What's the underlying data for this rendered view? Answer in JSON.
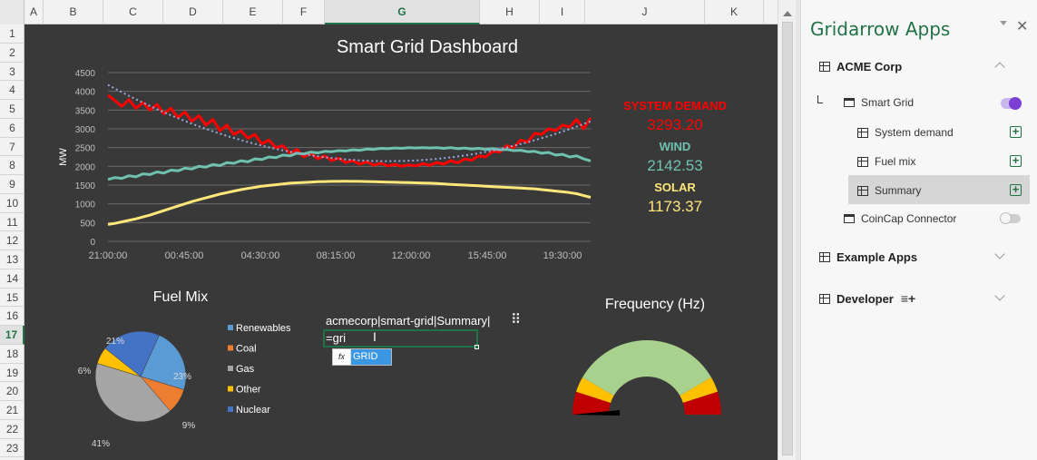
{
  "sheet": {
    "columns": [
      "A",
      "B",
      "C",
      "D",
      "E",
      "F",
      "G",
      "H",
      "I",
      "J",
      "K"
    ],
    "selected_column": "G",
    "rows": [
      "1",
      "2",
      "3",
      "4",
      "5",
      "6",
      "7",
      "8",
      "9",
      "10",
      "11",
      "12",
      "13",
      "14",
      "15",
      "16",
      "17",
      "18",
      "19",
      "20",
      "21",
      "22",
      "23"
    ],
    "selected_row": "17"
  },
  "dashboard": {
    "title": "Smart Grid Dashboard",
    "kpis": {
      "demand_label": "SYSTEM DEMAND",
      "demand_value": "3293.20",
      "wind_label": "WIND",
      "wind_value": "2142.53",
      "solar_label": "SOLAR",
      "solar_value": "1173.37"
    },
    "colors": {
      "background": "#3a3939",
      "demand": "#ff0000",
      "wind": "#6fc2b0",
      "solar": "#ffe77a",
      "trend": "#9aa7dc",
      "axis_text": "#bfbfbf"
    },
    "cell_ref": "acmecorp|smart-grid|Summary|",
    "formula_input": "=gri",
    "autocomplete": {
      "icon": "fx",
      "label": "GRID"
    }
  },
  "chart_data": [
    {
      "type": "line",
      "title": "Smart Grid Dashboard",
      "ylabel": "MW",
      "ylim": [
        0,
        4500
      ],
      "yticks": [
        0,
        500,
        1000,
        1500,
        2000,
        2500,
        3000,
        3500,
        4000,
        4500
      ],
      "xticks": [
        "21:00:00",
        "00:45:00",
        "04:30:00",
        "08:15:00",
        "12:00:00",
        "15:45:00",
        "19:30:00"
      ],
      "grid": true,
      "series": [
        {
          "name": "SYSTEM DEMAND",
          "color": "#ff0000",
          "values": [
            3900,
            3750,
            3600,
            3780,
            3550,
            3700,
            3500,
            3650,
            3400,
            3550,
            3300,
            3450,
            3200,
            3350,
            3100,
            3250,
            2950,
            3100,
            2850,
            2950,
            2750,
            2850,
            2600,
            2700,
            2500,
            2550,
            2350,
            2450,
            2250,
            2350,
            2200,
            2280,
            2150,
            2220,
            2100,
            2150,
            2060,
            2120,
            2030,
            2080,
            2010,
            2050,
            2000,
            2040,
            2010,
            2070,
            2030,
            2100,
            2060,
            2150,
            2090,
            2200,
            2160,
            2280,
            2250,
            2400,
            2380,
            2550,
            2500,
            2700,
            2650,
            2880,
            2850,
            3000,
            2950,
            3100,
            3050,
            3250,
            3000,
            3293
          ]
        },
        {
          "name": "WIND",
          "color": "#6fc2b0",
          "values": [
            1650,
            1700,
            1680,
            1750,
            1720,
            1800,
            1780,
            1850,
            1820,
            1900,
            1880,
            1950,
            1930,
            2000,
            1980,
            2050,
            2020,
            2100,
            2080,
            2150,
            2120,
            2200,
            2180,
            2250,
            2230,
            2300,
            2280,
            2350,
            2330,
            2380,
            2360,
            2400,
            2390,
            2420,
            2410,
            2440,
            2430,
            2460,
            2450,
            2480,
            2470,
            2490,
            2480,
            2500,
            2490,
            2500,
            2490,
            2500,
            2480,
            2500,
            2470,
            2490,
            2460,
            2480,
            2450,
            2470,
            2440,
            2450,
            2420,
            2430,
            2390,
            2400,
            2350,
            2370,
            2300,
            2320,
            2250,
            2280,
            2200,
            2143
          ]
        },
        {
          "name": "SOLAR",
          "color": "#ffe77a",
          "values": [
            450,
            480,
            520,
            560,
            600,
            650,
            700,
            760,
            820,
            880,
            940,
            1000,
            1060,
            1110,
            1160,
            1210,
            1260,
            1300,
            1340,
            1380,
            1410,
            1440,
            1470,
            1490,
            1510,
            1530,
            1550,
            1560,
            1570,
            1580,
            1590,
            1595,
            1600,
            1600,
            1605,
            1600,
            1600,
            1595,
            1590,
            1585,
            1580,
            1575,
            1570,
            1565,
            1560,
            1555,
            1550,
            1540,
            1530,
            1520,
            1510,
            1500,
            1490,
            1480,
            1470,
            1460,
            1450,
            1440,
            1430,
            1420,
            1410,
            1400,
            1380,
            1360,
            1340,
            1320,
            1300,
            1270,
            1220,
            1173
          ]
        }
      ]
    },
    {
      "type": "pie",
      "title": "Fuel Mix",
      "labels": [
        "Renewables",
        "Coal",
        "Gas",
        "Other",
        "Nuclear"
      ],
      "values": [
        23,
        9,
        41,
        6,
        21
      ],
      "colors": [
        "#5b9bd5",
        "#ed7d31",
        "#a5a5a5",
        "#ffc000",
        "#4472c4"
      ],
      "legend": "right"
    },
    {
      "type": "gauge",
      "title": "Frequency (Hz)",
      "bands": [
        "red",
        "yellow",
        "green",
        "yellow",
        "red"
      ],
      "colors": [
        "#c00000",
        "#ffc000",
        "#a9d18e",
        "#ffc000",
        "#c00000"
      ]
    }
  ],
  "panel": {
    "title": "Gridarrow Apps",
    "sections": [
      {
        "label": "ACME Corp"
      },
      {
        "label": "Example Apps"
      },
      {
        "label": "Developer"
      }
    ],
    "apps": [
      {
        "label": "Smart Grid"
      },
      {
        "label": "CoinCap Connector"
      }
    ],
    "sheets": [
      {
        "label": "System demand"
      },
      {
        "label": "Fuel mix"
      },
      {
        "label": "Summary"
      }
    ],
    "accent": "#217346"
  }
}
